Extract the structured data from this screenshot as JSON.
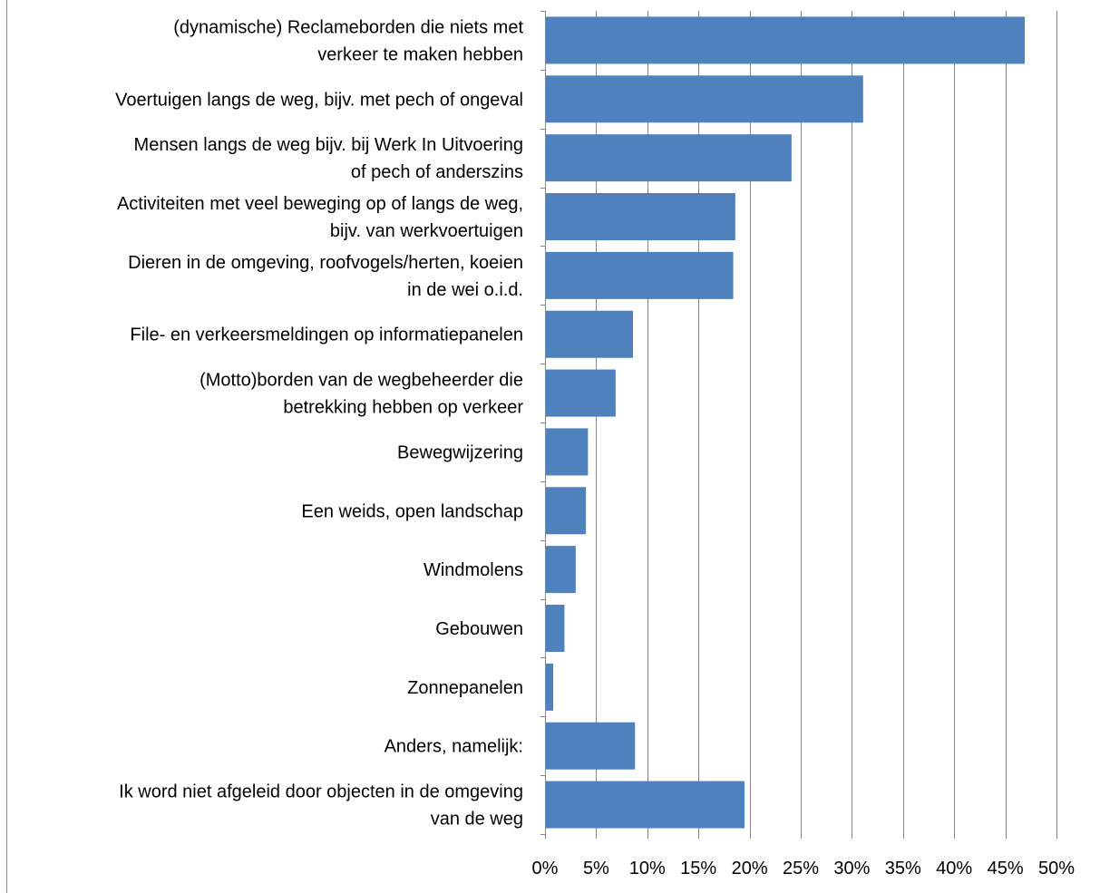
{
  "chart_data": {
    "type": "bar",
    "orientation": "horizontal",
    "categories": [
      [
        "(dynamische) Reclameborden die niets met",
        "verkeer te maken hebben"
      ],
      [
        "Voertuigen langs de weg, bijv. met pech of ongeval"
      ],
      [
        "Mensen langs de weg bijv. bij Werk In Uitvoering",
        "of pech of anderszins"
      ],
      [
        "Activiteiten met veel beweging op of langs de weg,",
        "bijv. van werkvoertuigen"
      ],
      [
        "Dieren in de omgeving, roofvogels/herten, koeien",
        "in de wei o.i.d."
      ],
      [
        "File- en verkeersmeldingen op informatiepanelen"
      ],
      [
        "(Motto)borden van de wegbeheerder die",
        "betrekking hebben op verkeer"
      ],
      [
        "Bewegwijzering"
      ],
      [
        "Een weids, open landschap"
      ],
      [
        "Windmolens"
      ],
      [
        "Gebouwen"
      ],
      [
        "Zonnepanelen"
      ],
      [
        "Anders, namelijk:"
      ],
      [
        "Ik word niet afgeleid door objecten in de omgeving",
        "van de weg"
      ]
    ],
    "values": [
      46.9,
      31.1,
      24.1,
      18.6,
      18.4,
      8.6,
      6.9,
      4.2,
      4.0,
      3.0,
      1.9,
      0.8,
      8.8,
      19.5
    ],
    "xlim": [
      0,
      50
    ],
    "xticks": [
      "0%",
      "5%",
      "10%",
      "15%",
      "20%",
      "25%",
      "30%",
      "35%",
      "40%",
      "45%",
      "50%"
    ],
    "grid": true,
    "legend": "none",
    "bar_color": "#4F81BD",
    "grid_color": "#868686"
  }
}
